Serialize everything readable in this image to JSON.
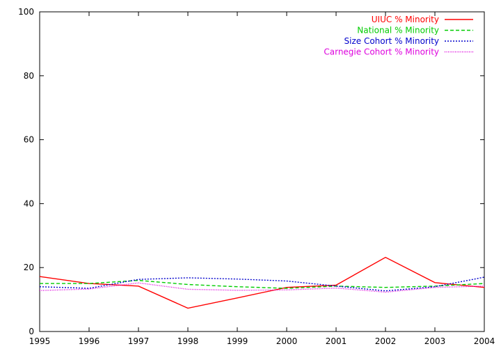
{
  "chart_data": {
    "type": "line",
    "title": "",
    "xlabel": "",
    "ylabel": "",
    "x": [
      1995,
      1996,
      1997,
      1998,
      1999,
      2000,
      2001,
      2002,
      2003,
      2004
    ],
    "xlim": [
      1995,
      2004
    ],
    "ylim": [
      0,
      100
    ],
    "x_ticks": [
      "1995",
      "1996",
      "1997",
      "1998",
      "1999",
      "2000",
      "2001",
      "2002",
      "2003",
      "2004"
    ],
    "y_ticks": [
      "0",
      "20",
      "40",
      "60",
      "80",
      "100"
    ],
    "grid": false,
    "legend_position": "top-right",
    "series": [
      {
        "name": "UIUC % Minority",
        "color": "#ff0000",
        "dash": "solid",
        "values": [
          17.2,
          15.0,
          14.2,
          7.3,
          10.5,
          13.8,
          14.5,
          23.2,
          15.3,
          13.8
        ]
      },
      {
        "name": "National % Minority",
        "color": "#00cc00",
        "dash": "dashed",
        "values": [
          15.0,
          15.0,
          16.0,
          14.7,
          14.0,
          13.5,
          14.2,
          13.8,
          14.2,
          15.0
        ]
      },
      {
        "name": "Size Cohort % Minority",
        "color": "#0000cc",
        "dash": "dotted",
        "values": [
          14.0,
          13.5,
          16.3,
          16.8,
          16.4,
          15.8,
          14.2,
          12.7,
          14.0,
          17.0
        ]
      },
      {
        "name": "Carnegie Cohort % Minority",
        "color": "#dd00dd",
        "dash": "fine-dotted",
        "values": [
          12.8,
          13.3,
          15.2,
          13.2,
          12.9,
          13.0,
          13.6,
          12.3,
          13.8,
          14.2
        ]
      }
    ]
  }
}
